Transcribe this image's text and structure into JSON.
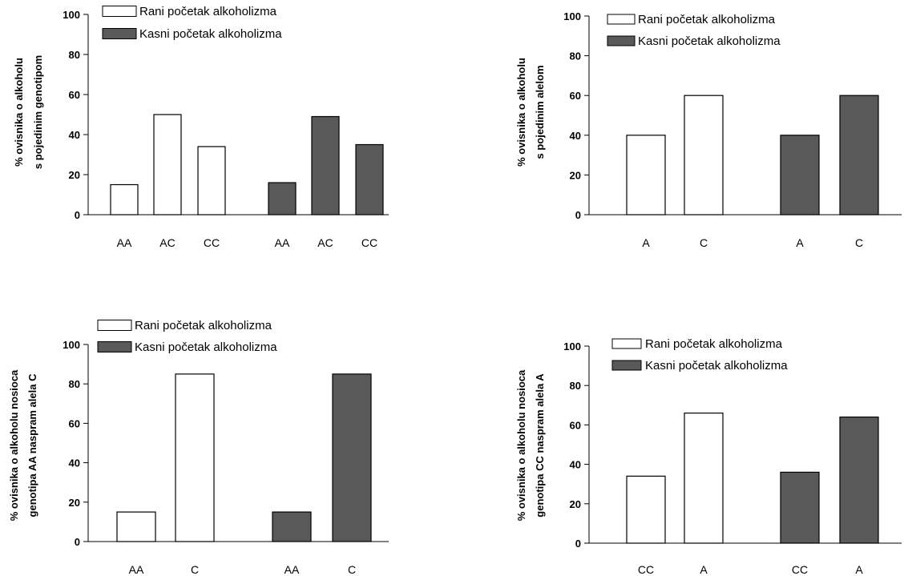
{
  "legend": {
    "early_label": "Rani početak alkoholizma",
    "late_label": "Kasni početak alkoholizma"
  },
  "colors": {
    "early_fill": "#ffffff",
    "late_fill": "#595959",
    "stroke": "#000000"
  },
  "chart_data": [
    {
      "type": "bar",
      "ylabel_lines": [
        "% ovisnika o alkoholu",
        "s  pojedinim genotipom"
      ],
      "ylim": [
        0,
        100
      ],
      "yticks": [
        0,
        20,
        40,
        60,
        80,
        100
      ],
      "legend_placement": "top",
      "series": [
        {
          "name": "Rani početak alkoholizma",
          "categories": [
            "AA",
            "AC",
            "CC"
          ],
          "values": [
            15,
            50,
            34
          ]
        },
        {
          "name": "Kasni početak alkoholizma",
          "categories": [
            "AA",
            "AC",
            "CC"
          ],
          "values": [
            16,
            49,
            35
          ]
        }
      ]
    },
    {
      "type": "bar",
      "ylabel_lines": [
        "% ovisnika o alkoholu",
        "s  pojedinim alelom"
      ],
      "ylim": [
        0,
        100
      ],
      "yticks": [
        0,
        20,
        40,
        60,
        80,
        100
      ],
      "legend_placement": "top",
      "series": [
        {
          "name": "Rani početak alkoholizma",
          "categories": [
            "A",
            "C"
          ],
          "values": [
            40,
            60
          ]
        },
        {
          "name": "Kasni početak alkoholizma",
          "categories": [
            "A",
            "C"
          ],
          "values": [
            40,
            60
          ]
        }
      ]
    },
    {
      "type": "bar",
      "ylabel_lines": [
        "% ovisnika o alkoholu nosioca",
        "genotipa AA naspram alela C"
      ],
      "ylim": [
        0,
        100
      ],
      "yticks": [
        0,
        20,
        40,
        60,
        80,
        100
      ],
      "legend_placement": "top",
      "series": [
        {
          "name": "Rani početak alkoholizma",
          "categories": [
            "AA",
            "C"
          ],
          "values": [
            15,
            85
          ]
        },
        {
          "name": "Kasni početak alkoholizma",
          "categories": [
            "AA",
            "C"
          ],
          "values": [
            15,
            85
          ]
        }
      ]
    },
    {
      "type": "bar",
      "ylabel_lines": [
        "% ovisnika o alkoholu nosioca",
        "genotipa CC naspram alela A"
      ],
      "ylim": [
        0,
        100
      ],
      "yticks": [
        0,
        20,
        40,
        60,
        80,
        100
      ],
      "legend_placement": "top",
      "series": [
        {
          "name": "Rani početak alkoholizma",
          "categories": [
            "CC",
            "A"
          ],
          "values": [
            34,
            66
          ]
        },
        {
          "name": "Kasni početak alkoholizma",
          "categories": [
            "CC",
            "A"
          ],
          "values": [
            36,
            64
          ]
        }
      ]
    }
  ]
}
